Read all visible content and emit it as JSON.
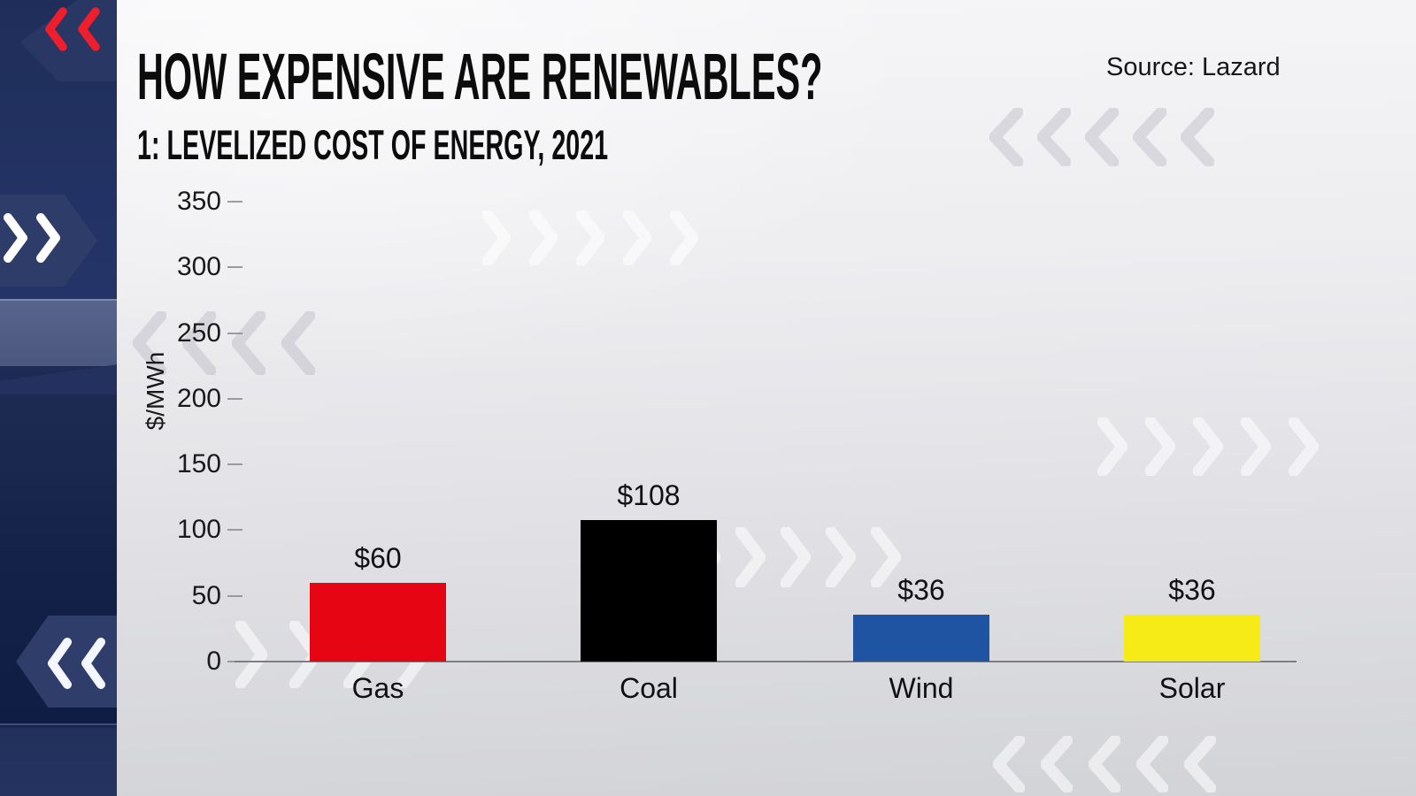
{
  "header": {
    "title": "HOW EXPENSIVE ARE RENEWABLES?",
    "subtitle": "1: LEVELIZED COST OF ENERGY, 2021",
    "source": "Source: Lazard"
  },
  "chart_data": {
    "type": "bar",
    "title": "1: LEVELIZED COST OF ENERGY, 2021",
    "categories": [
      "Gas",
      "Coal",
      "Wind",
      "Solar"
    ],
    "values": [
      60,
      108,
      36,
      36
    ],
    "value_labels": [
      "$60",
      "$108",
      "$36",
      "$36"
    ],
    "bar_colors": [
      "#e60613",
      "#000000",
      "#1f54a3",
      "#f6eb16"
    ],
    "xlabel": "",
    "ylabel": "$/MWh",
    "yticks": [
      0,
      50,
      100,
      150,
      200,
      250,
      300,
      350
    ],
    "ylim": [
      0,
      370
    ],
    "grid": false,
    "legend": false
  },
  "colors": {
    "sidebar_navy": "#1f2e59",
    "accent_red": "#ef1e2c",
    "chevron_white": "#ffffff",
    "canvas_top": "#f6f6f8",
    "canvas_bottom": "#d2d3d7",
    "axis_line": "#7e7e85"
  }
}
